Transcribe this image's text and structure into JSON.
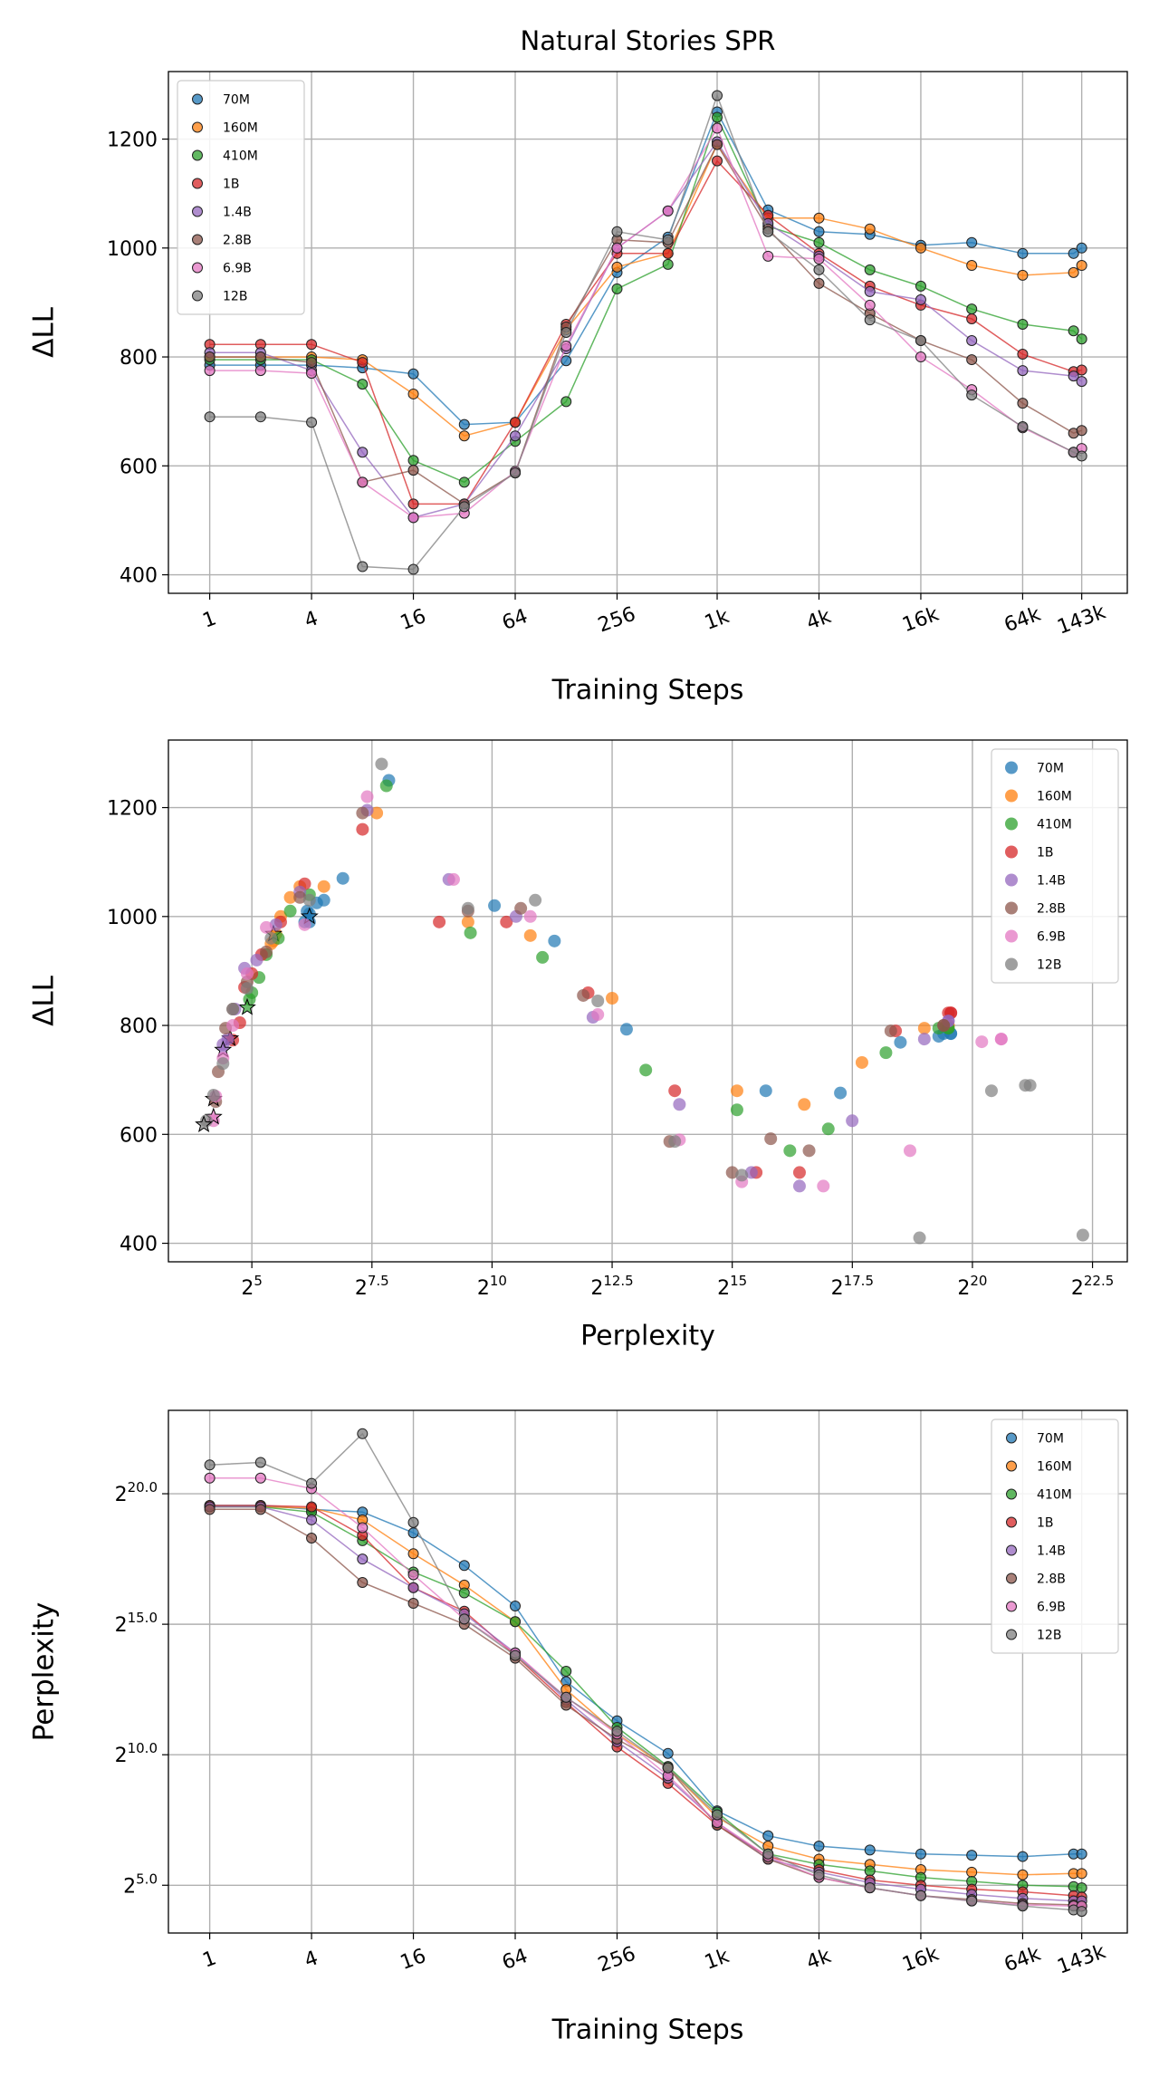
{
  "chart_data": [
    {
      "type": "line",
      "title": "Natural Stories SPR",
      "xlabel": "Training Steps",
      "ylabel": "ΔLL",
      "xscale": "log",
      "xlim": [
        0.57,
        266000
      ],
      "ylim": [
        366,
        1324
      ],
      "xticks": [
        1,
        4,
        16,
        64,
        256,
        {
          "value": 1000,
          "label": "1k"
        },
        {
          "value": 4000,
          "label": "4k"
        },
        {
          "value": 16000,
          "label": "16k"
        },
        {
          "value": 64000,
          "label": "64k"
        },
        {
          "value": 143000,
          "label": "143k"
        }
      ],
      "yticks": [
        400,
        600,
        800,
        1000,
        1200
      ],
      "grid": true,
      "legend": "upper left",
      "x": [
        1,
        2,
        4,
        8,
        16,
        32,
        64,
        128,
        256,
        512,
        1000,
        2000,
        4000,
        8000,
        16000,
        32000,
        64000,
        128000,
        143000
      ],
      "series": [
        {
          "name": "70M",
          "color": "#1f77b4",
          "values": [
            785,
            785,
            785,
            780,
            769,
            676,
            680,
            793,
            955,
            1020,
            1250,
            1070,
            1030,
            1025,
            1005,
            1010,
            990,
            990,
            1000
          ]
        },
        {
          "name": "160M",
          "color": "#ff7f0e",
          "values": [
            800,
            800,
            800,
            795,
            732,
            655,
            680,
            850,
            965,
            990,
            1190,
            1055,
            1055,
            1035,
            1000,
            968,
            950,
            955,
            968
          ]
        },
        {
          "name": "410M",
          "color": "#2ca02c",
          "values": [
            795,
            795,
            795,
            750,
            610,
            570,
            645,
            718,
            925,
            970,
            1240,
            1040,
            1010,
            960,
            930,
            888,
            860,
            848,
            833
          ]
        },
        {
          "name": "1B",
          "color": "#d62728",
          "values": [
            823,
            823,
            823,
            790,
            530,
            530,
            680,
            860,
            990,
            990,
            1160,
            1060,
            990,
            930,
            895,
            870,
            805,
            773,
            776
          ]
        },
        {
          "name": "1.4B",
          "color": "#9467bd",
          "values": [
            808,
            808,
            775,
            625,
            505,
            530,
            655,
            815,
            1000,
            1068,
            1195,
            1045,
            985,
            920,
            905,
            830,
            775,
            765,
            755
          ]
        },
        {
          "name": "2.8B",
          "color": "#8c564b",
          "values": [
            800,
            800,
            790,
            570,
            592,
            530,
            587,
            855,
            1015,
            1010,
            1190,
            1035,
            935,
            880,
            830,
            795,
            715,
            660,
            665
          ]
        },
        {
          "name": "6.9B",
          "color": "#e377c2",
          "values": [
            775,
            775,
            770,
            570,
            505,
            513,
            590,
            820,
            1000,
            1068,
            1220,
            985,
            980,
            895,
            800,
            740,
            670,
            625,
            632
          ]
        },
        {
          "name": "12B",
          "color": "#7f7f7f",
          "values": [
            690,
            690,
            680,
            415,
            410,
            525,
            587,
            845,
            1030,
            1015,
            1280,
            1030,
            960,
            868,
            830,
            730,
            672,
            625,
            618
          ]
        }
      ]
    },
    {
      "type": "scatter",
      "xlabel": "Perplexity",
      "ylabel": "ΔLL",
      "xscale": "log",
      "xlim": [
        9.6,
        9800000
      ],
      "ylim": [
        366,
        1324
      ],
      "xticks": [
        {
          "value": 32,
          "label": "2^5"
        },
        {
          "value": 181.02,
          "label": "2^7.5"
        },
        {
          "value": 1024,
          "label": "2^10"
        },
        {
          "value": 5792.6,
          "label": "2^12.5"
        },
        {
          "value": 32768,
          "label": "2^15"
        },
        {
          "value": 185363.8,
          "label": "2^17.5"
        },
        {
          "value": 1048576,
          "label": "2^20"
        },
        {
          "value": 5931642,
          "label": "2^22.5"
        }
      ],
      "yticks": [
        400,
        600,
        800,
        1000,
        1200
      ],
      "grid": true,
      "legend": "upper right",
      "series": [
        {
          "name": "70M",
          "color": "#1f77b4",
          "x": [
            768000,
            768000,
            692000,
            645000,
            371000,
            156000,
            53200,
            7130,
            2520,
            1060,
            231,
            119,
            90.5,
            81.6,
            73.5,
            71.0,
            68.6,
            73.5,
            73.5
          ],
          "y": [
            785,
            785,
            785,
            780,
            769,
            676,
            680,
            793,
            955,
            1020,
            1250,
            1070,
            1030,
            1025,
            1005,
            1010,
            990,
            990,
            1000
          ]
        },
        {
          "name": "160M",
          "color": "#ff7f0e",
          "x": [
            741000,
            741000,
            716000,
            524000,
            213000,
            92700,
            35100,
            5790,
            1780,
            724,
            194,
            90.5,
            64,
            55.7,
            48.5,
            45.3,
            42.2,
            43.7,
            43.7
          ],
          "y": [
            800,
            800,
            800,
            795,
            732,
            655,
            680,
            850,
            965,
            990,
            1190,
            1055,
            1055,
            1035,
            1000,
            968,
            950,
            955,
            968
          ]
        },
        {
          "name": "410M",
          "color": "#2ca02c",
          "x": [
            741000,
            741000,
            645000,
            301000,
            131000,
            75300,
            35100,
            9410,
            2120,
            750,
            223,
            73.5,
            55.7,
            46.9,
            39.4,
            35.5,
            32,
            30.9,
            29.9
          ],
          "y": [
            795,
            795,
            795,
            750,
            610,
            570,
            645,
            718,
            925,
            970,
            1240,
            1040,
            1010,
            960,
            930,
            888,
            860,
            848,
            833
          ]
        },
        {
          "name": "1B",
          "color": "#d62728",
          "x": [
            768000,
            768000,
            741000,
            346000,
            86500,
            46300,
            14300,
            4096,
            1260,
            478,
            158,
            68.6,
            48.5,
            36.8,
            32,
            28.8,
            26.9,
            24.3,
            23.4
          ],
          "y": [
            823,
            823,
            823,
            790,
            530,
            530,
            680,
            860,
            990,
            990,
            1160,
            1060,
            990,
            930,
            895,
            870,
            805,
            773,
            776
          ]
        },
        {
          "name": "1.4B",
          "color": "#9467bd",
          "x": [
            741000,
            741000,
            524000,
            185000,
            86500,
            43200,
            15300,
            4390,
            1448,
            549,
            169,
            64,
            45.3,
            34.3,
            28.8,
            25.1,
            22.6,
            21.1,
            21.1
          ],
          "y": [
            808,
            808,
            775,
            625,
            505,
            530,
            655,
            815,
            1000,
            1068,
            1195,
            1045,
            985,
            920,
            905,
            830,
            775,
            765,
            755
          ]
        },
        {
          "name": "2.8B",
          "color": "#8c564b",
          "x": [
            692000,
            692000,
            323000,
            99300,
            57100,
            32768,
            13300,
            3820,
            1550,
            724,
            158,
            64,
            39.4,
            29.9,
            24.3,
            21.9,
            19.7,
            19.0,
            18.4
          ],
          "y": [
            800,
            800,
            790,
            570,
            592,
            530,
            587,
            855,
            1015,
            1010,
            1190,
            1035,
            935,
            880,
            830,
            795,
            715,
            660,
            665
          ]
        },
        {
          "name": "6.9B",
          "color": "#e377c2",
          "x": [
            1590000,
            1590000,
            1200000,
            426000,
            122000,
            37600,
            15300,
            4710,
            1780,
            588,
            169,
            68.6,
            39.4,
            29.9,
            24.3,
            21.1,
            19.0,
            18.4,
            18.4
          ],
          "y": [
            775,
            775,
            770,
            570,
            505,
            513,
            590,
            820,
            1000,
            1068,
            1220,
            985,
            980,
            895,
            800,
            740,
            670,
            625,
            632
          ]
        },
        {
          "name": "12B",
          "color": "#7f7f7f",
          "x": [
            2250000,
            2410000,
            1380000,
            5160000,
            489000,
            37600,
            14300,
            4710,
            1910,
            724,
            208,
            73.5,
            42.2,
            29.9,
            24.3,
            21.1,
            18.4,
            16.6,
            16
          ],
          "y": [
            690,
            690,
            680,
            415,
            410,
            525,
            587,
            845,
            1030,
            1015,
            1280,
            1030,
            960,
            868,
            830,
            730,
            672,
            625,
            618
          ]
        }
      ]
    },
    {
      "type": "line",
      "xlabel": "Training Steps",
      "ylabel": "Perplexity",
      "xscale": "log",
      "yscale": "log",
      "xlim": [
        0.57,
        266000
      ],
      "ylim": [
        9.0,
        9600000
      ],
      "xticks": [
        1,
        4,
        16,
        64,
        256,
        {
          "value": 1000,
          "label": "1k"
        },
        {
          "value": 4000,
          "label": "4k"
        },
        {
          "value": 16000,
          "label": "16k"
        },
        {
          "value": 64000,
          "label": "64k"
        },
        {
          "value": 143000,
          "label": "143k"
        }
      ],
      "yticks": [
        {
          "value": 32,
          "label": "2^5.0"
        },
        {
          "value": 1024,
          "label": "2^10.0"
        },
        {
          "value": 32768,
          "label": "2^15.0"
        },
        {
          "value": 1048576,
          "label": "2^20.0"
        }
      ],
      "grid": true,
      "legend": "upper right",
      "x": [
        1,
        2,
        4,
        8,
        16,
        32,
        64,
        128,
        256,
        512,
        1000,
        2000,
        4000,
        8000,
        16000,
        32000,
        64000,
        128000,
        143000
      ],
      "series": [
        {
          "name": "70M",
          "color": "#1f77b4",
          "values": [
            768000,
            768000,
            692000,
            645000,
            371000,
            156000,
            53200,
            7130,
            2520,
            1060,
            231,
            119,
            90.5,
            81.6,
            73.5,
            71.0,
            68.6,
            73.5,
            73.5
          ]
        },
        {
          "name": "160M",
          "color": "#ff7f0e",
          "values": [
            741000,
            741000,
            716000,
            524000,
            213000,
            92700,
            35100,
            5790,
            1780,
            724,
            194,
            90.5,
            64,
            55.7,
            48.5,
            45.3,
            42.2,
            43.7,
            43.7
          ]
        },
        {
          "name": "410M",
          "color": "#2ca02c",
          "values": [
            741000,
            741000,
            645000,
            301000,
            131000,
            75300,
            35100,
            9410,
            2120,
            750,
            223,
            73.5,
            55.7,
            46.9,
            39.4,
            35.5,
            32,
            30.9,
            29.9
          ]
        },
        {
          "name": "1B",
          "color": "#d62728",
          "values": [
            768000,
            768000,
            741000,
            346000,
            86500,
            46300,
            14300,
            4096,
            1260,
            478,
            158,
            68.6,
            48.5,
            36.8,
            32,
            28.8,
            26.9,
            24.3,
            23.4
          ]
        },
        {
          "name": "1.4B",
          "color": "#9467bd",
          "values": [
            741000,
            741000,
            524000,
            185000,
            86500,
            43200,
            15300,
            4390,
            1448,
            549,
            169,
            64,
            45.3,
            34.3,
            28.8,
            25.1,
            22.6,
            21.1,
            21.1
          ]
        },
        {
          "name": "2.8B",
          "color": "#8c564b",
          "values": [
            692000,
            692000,
            323000,
            99300,
            57100,
            32768,
            13300,
            3820,
            1550,
            724,
            158,
            64,
            39.4,
            29.9,
            24.3,
            21.9,
            19.7,
            19.0,
            18.4
          ]
        },
        {
          "name": "6.9B",
          "color": "#e377c2",
          "values": [
            1590000,
            1590000,
            1200000,
            426000,
            122000,
            37600,
            15300,
            4710,
            1780,
            588,
            169,
            68.6,
            39.4,
            29.9,
            24.3,
            21.1,
            19.0,
            18.4,
            18.4
          ]
        },
        {
          "name": "12B",
          "color": "#7f7f7f",
          "values": [
            2250000,
            2410000,
            1380000,
            5160000,
            489000,
            37600,
            14300,
            4710,
            1910,
            724,
            208,
            73.5,
            42.2,
            29.9,
            24.3,
            21.1,
            18.4,
            16.6,
            16
          ]
        }
      ]
    }
  ]
}
